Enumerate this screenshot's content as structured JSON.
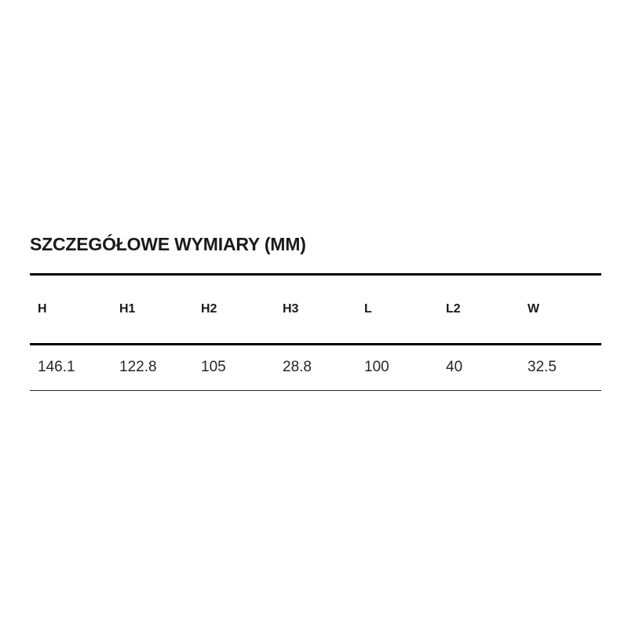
{
  "section": {
    "title": "SZCZEGÓŁOWE WYMIARY (MM)"
  },
  "table": {
    "columns": [
      "H",
      "H1",
      "H2",
      "H3",
      "L",
      "L2",
      "W"
    ],
    "rows": [
      [
        "146.1",
        "122.8",
        "105",
        "28.8",
        "100",
        "40",
        "32.5"
      ]
    ]
  },
  "colors": {
    "background": "#ffffff",
    "title_text": "#1a1a1a",
    "header_text": "#1a1a1a",
    "value_text": "#262626",
    "rule_heavy": "#000000",
    "rule_light": "#262626"
  }
}
